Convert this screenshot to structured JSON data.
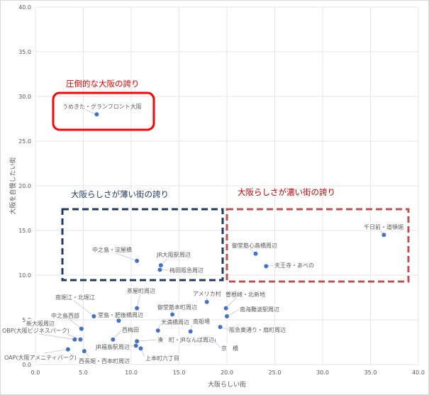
{
  "chart_data": {
    "type": "scatter",
    "xlabel": "大阪らしい街",
    "ylabel": "大阪を自慢したい街",
    "xlim": [
      0,
      40
    ],
    "ylim": [
      0,
      40
    ],
    "xticks": [
      "0.0",
      "5.0",
      "10.0",
      "15.0",
      "20.0",
      "25.0",
      "30.0",
      "35.0",
      "40.0"
    ],
    "yticks": [
      "0.0",
      "5.0",
      "10.0",
      "15.0",
      "20.0",
      "25.0",
      "30.0",
      "35.0",
      "40.0"
    ],
    "grid": true,
    "point_color": "#4472C4",
    "points": [
      {
        "label": "うめきた・グランフロント大阪",
        "x": 6.4,
        "y": 28.0
      },
      {
        "label": "中之島・淀屋橋",
        "x": 10.6,
        "y": 11.6
      },
      {
        "label": "JR大阪駅周辺",
        "x": 13.1,
        "y": 11.1
      },
      {
        "label": "梅田阪急周辺",
        "x": 13.0,
        "y": 10.6
      },
      {
        "label": "千日前・道頓堀",
        "x": 36.4,
        "y": 14.5
      },
      {
        "label": "御堂筋心斎橋周辺",
        "x": 23.0,
        "y": 12.4
      },
      {
        "label": "天王寺・あべの",
        "x": 24.1,
        "y": 11.0
      },
      {
        "label": "アメリカ村",
        "x": 17.9,
        "y": 7.0
      },
      {
        "label": "曽根崎・北新地",
        "x": 19.9,
        "y": 6.3
      },
      {
        "label": "南海難波駅周辺",
        "x": 20.0,
        "y": 5.4
      },
      {
        "label": "阪急東通り・扇町周辺",
        "x": 19.3,
        "y": 4.2
      },
      {
        "label": "京　橋",
        "x": 18.6,
        "y": 2.7
      },
      {
        "label": "茶屋町周辺",
        "x": 10.6,
        "y": 6.3
      },
      {
        "label": "南堀江・北堀江",
        "x": 6.1,
        "y": 5.4
      },
      {
        "label": "堂島・肥後橋周辺",
        "x": 8.7,
        "y": 4.9
      },
      {
        "label": "御堂筋本町周辺",
        "x": 14.3,
        "y": 5.6
      },
      {
        "label": "中之島西部",
        "x": 4.8,
        "y": 4.0
      },
      {
        "label": "新大阪周辺",
        "x": 4.7,
        "y": 2.8
      },
      {
        "label": "OBP(大阪ビジネスパーク)",
        "x": 4.1,
        "y": 2.8
      },
      {
        "label": "西梅田",
        "x": 8.1,
        "y": 2.8
      },
      {
        "label": "天満橋周辺",
        "x": 12.8,
        "y": 3.8
      },
      {
        "label": "南船場",
        "x": 16.2,
        "y": 3.7
      },
      {
        "label": "湊　町・JRなんば周辺",
        "x": 10.6,
        "y": 2.6
      },
      {
        "label": "JR福島駅周辺",
        "x": 10.5,
        "y": 2.1
      },
      {
        "label": "上本町六丁目",
        "x": 11.0,
        "y": 1.8
      },
      {
        "label": "OAP(大阪アメニティパーク)",
        "x": 3.4,
        "y": 1.7
      },
      {
        "label": "西長堀・西本町周辺",
        "x": 5.1,
        "y": 1.5
      }
    ],
    "annotations": [
      {
        "text": "圧倒的な大阪の誇り",
        "color": "#E00000"
      },
      {
        "text": "大阪らしさが薄い街の誇り",
        "color": "#1F3864"
      },
      {
        "text": "大阪らしさが濃い街の誇り",
        "color": "#C00000"
      }
    ]
  }
}
